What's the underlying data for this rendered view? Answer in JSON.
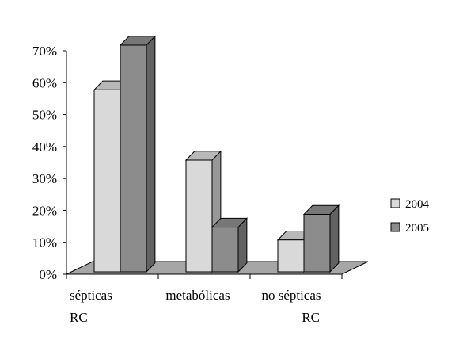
{
  "chart_data": {
    "type": "bar",
    "categories": [
      [
        "sépticas",
        "RC"
      ],
      [
        "metabólicas"
      ],
      [
        "no sépticas",
        "RC"
      ]
    ],
    "series": [
      {
        "name": "2004",
        "values": [
          57,
          35,
          10
        ],
        "color": "#d9d9d9"
      },
      {
        "name": "2005",
        "values": [
          71,
          14,
          18
        ],
        "color": "#8c8c8c"
      }
    ],
    "yticks": [
      "0%",
      "10%",
      "20%",
      "30%",
      "40%",
      "50%",
      "60%",
      "70%"
    ],
    "ylim": [
      0,
      70
    ],
    "grid": false,
    "legend_position": "right",
    "three_d": true,
    "colors": {
      "floor": "#a6a6a6",
      "frame": "#000000"
    }
  }
}
